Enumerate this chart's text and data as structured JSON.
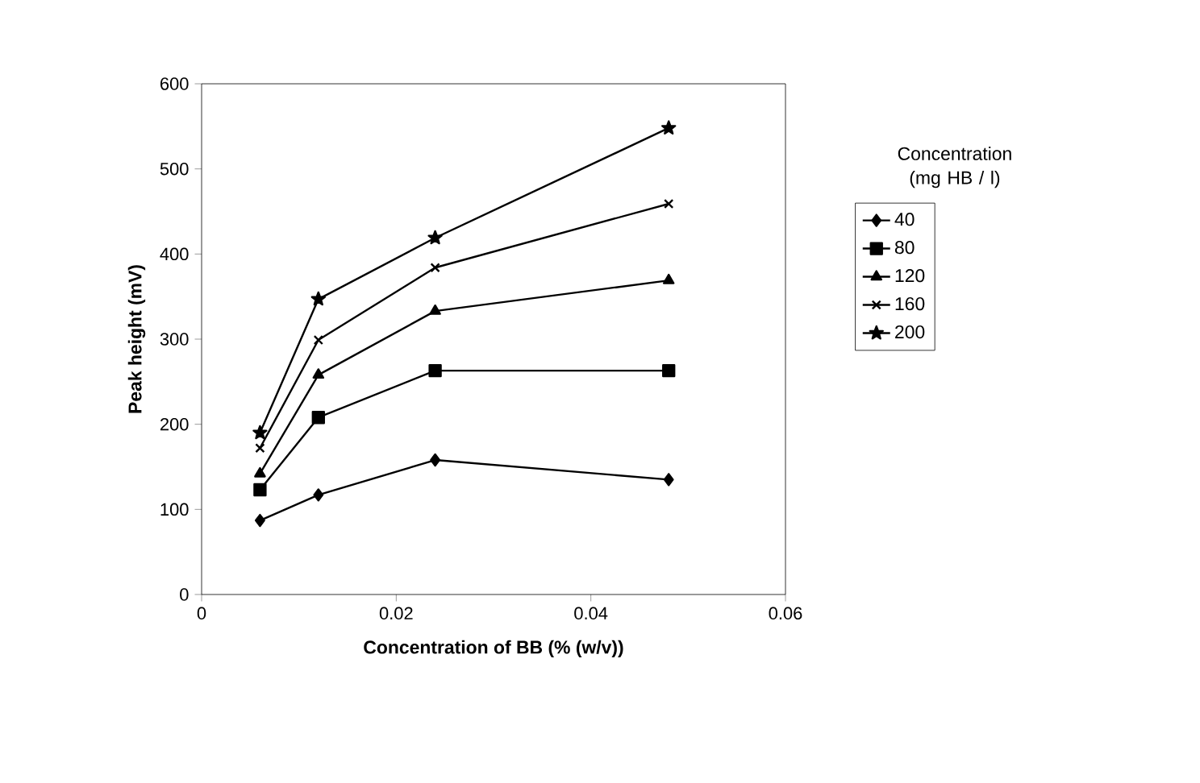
{
  "chart_data": {
    "type": "line",
    "xlabel": "Concentration of BB (% (w/v))",
    "ylabel": "Peak height (mV)",
    "legend_title": "Concentration (mg HB / l)",
    "x": [
      0.006,
      0.012,
      0.024,
      0.048
    ],
    "series": [
      {
        "name": "40",
        "color": "#000000",
        "marker": "diamond",
        "values": [
          87,
          117,
          158,
          135
        ]
      },
      {
        "name": "80",
        "color": "#000000",
        "marker": "square",
        "values": [
          123,
          208,
          263,
          263
        ]
      },
      {
        "name": "120",
        "color": "#000000",
        "marker": "triangle",
        "values": [
          142,
          258,
          333,
          369
        ]
      },
      {
        "name": "160",
        "color": "#000000",
        "marker": "cross",
        "values": [
          172,
          299,
          384,
          459
        ]
      },
      {
        "name": "200",
        "color": "#000000",
        "marker": "star",
        "values": [
          190,
          347,
          419,
          548
        ]
      }
    ],
    "xlim": [
      0,
      0.06
    ],
    "xticks": [
      0,
      0.02,
      0.04,
      0.06
    ],
    "ylim": [
      0,
      600
    ],
    "yticks": [
      0,
      100,
      200,
      300,
      400,
      500,
      600
    ],
    "grid": false,
    "legend": "right",
    "line_style": "solid"
  }
}
